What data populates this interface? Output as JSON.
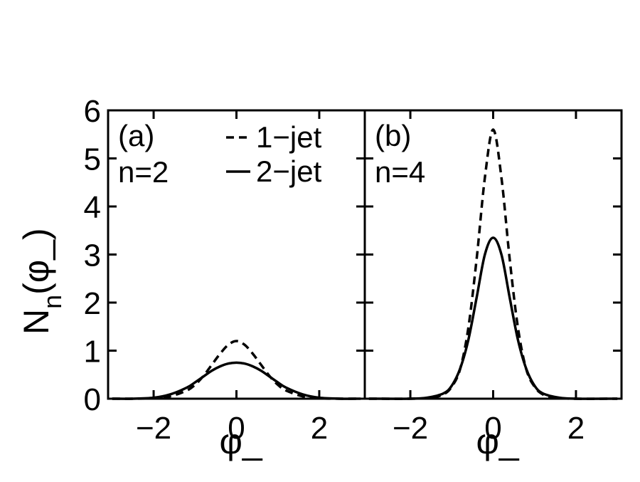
{
  "chart_data": [
    {
      "type": "line",
      "panel_label": "(a)",
      "param_label": "n=2",
      "xlabel": "φ_",
      "ylabel": "N_n(φ_)",
      "xlim": [
        -3.1,
        3.1
      ],
      "ylim": [
        0,
        6
      ],
      "xticks": [
        -2,
        0,
        2
      ],
      "xtick_labels": [
        "−2",
        "0",
        "2"
      ],
      "yticks": [
        0,
        1,
        2,
        3,
        4,
        5,
        6
      ],
      "ytick_labels": [
        "0",
        "1",
        "2",
        "3",
        "4",
        "5",
        "6"
      ],
      "legend": {
        "placement": "top-right",
        "entries": [
          "1−jet",
          "2−jet"
        ]
      },
      "grid": false,
      "series": [
        {
          "name": "1−jet",
          "style": "dashed",
          "x": [
            -3.0,
            -2.5,
            -2.0,
            -1.6,
            -1.2,
            -1.0,
            -0.8,
            -0.6,
            -0.4,
            -0.2,
            0.0,
            0.2,
            0.4,
            0.6,
            0.8,
            1.0,
            1.2,
            1.6,
            2.0,
            2.5,
            3.0
          ],
          "y": [
            0.0,
            0.0,
            0.01,
            0.05,
            0.17,
            0.29,
            0.47,
            0.7,
            0.93,
            1.12,
            1.2,
            1.12,
            0.93,
            0.7,
            0.47,
            0.29,
            0.17,
            0.05,
            0.01,
            0.0,
            0.0
          ]
        },
        {
          "name": "2−jet",
          "style": "solid",
          "x": [
            -3.0,
            -2.5,
            -2.0,
            -1.6,
            -1.2,
            -1.0,
            -0.8,
            -0.6,
            -0.4,
            -0.2,
            0.0,
            0.2,
            0.4,
            0.6,
            0.8,
            1.0,
            1.2,
            1.6,
            2.0,
            2.5,
            3.0
          ],
          "y": [
            0.0,
            0.0,
            0.02,
            0.09,
            0.23,
            0.34,
            0.46,
            0.58,
            0.67,
            0.73,
            0.75,
            0.73,
            0.67,
            0.58,
            0.46,
            0.34,
            0.23,
            0.09,
            0.02,
            0.0,
            0.0
          ]
        }
      ]
    },
    {
      "type": "line",
      "panel_label": "(b)",
      "param_label": "n=4",
      "xlabel": "φ_",
      "xlim": [
        -3.1,
        3.1
      ],
      "ylim": [
        0,
        6
      ],
      "xticks": [
        -2,
        0,
        2
      ],
      "xtick_labels": [
        "−2",
        "0",
        "2"
      ],
      "grid": false,
      "series": [
        {
          "name": "1−jet",
          "style": "dashed",
          "x": [
            -3.0,
            -2.0,
            -1.5,
            -1.2,
            -1.0,
            -0.8,
            -0.6,
            -0.4,
            -0.2,
            0.0,
            0.2,
            0.4,
            0.6,
            0.8,
            1.0,
            1.2,
            1.5,
            2.0,
            3.0
          ],
          "y": [
            0.0,
            0.0,
            0.02,
            0.09,
            0.25,
            0.61,
            1.47,
            2.9,
            4.6,
            5.6,
            4.6,
            2.9,
            1.47,
            0.61,
            0.25,
            0.09,
            0.02,
            0.0,
            0.0
          ]
        },
        {
          "name": "2−jet",
          "style": "solid",
          "x": [
            -3.0,
            -2.0,
            -1.6,
            -1.2,
            -1.0,
            -0.8,
            -0.6,
            -0.4,
            -0.2,
            0.0,
            0.2,
            0.4,
            0.6,
            0.8,
            1.0,
            1.2,
            1.6,
            2.0,
            3.0
          ],
          "y": [
            0.0,
            0.0,
            0.02,
            0.11,
            0.27,
            0.62,
            1.22,
            2.1,
            3.0,
            3.35,
            3.0,
            2.1,
            1.22,
            0.62,
            0.27,
            0.11,
            0.02,
            0.0,
            0.0
          ]
        }
      ]
    }
  ]
}
